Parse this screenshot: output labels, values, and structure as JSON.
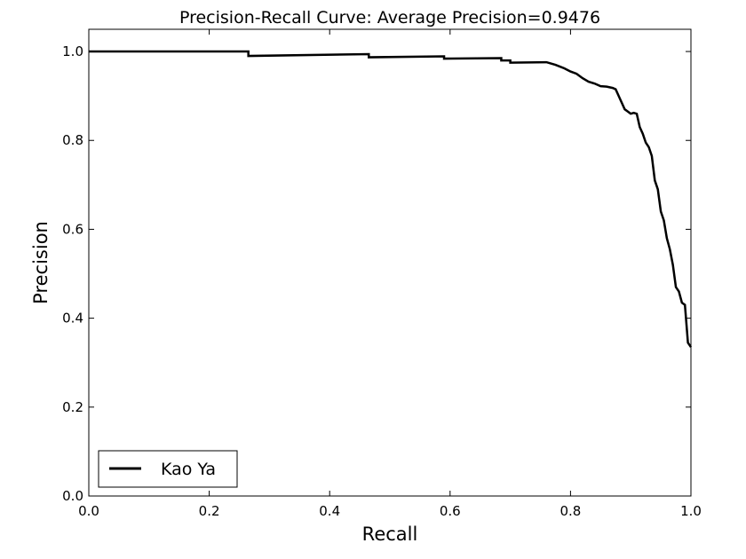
{
  "chart_data": {
    "type": "line",
    "title": "Precision-Recall Curve: Average Precision=0.9476",
    "xlabel": "Recall",
    "ylabel": "Precision",
    "xlim": [
      0.0,
      1.0
    ],
    "ylim": [
      0.0,
      1.05
    ],
    "xticks": [
      "0.0",
      "0.2",
      "0.4",
      "0.6",
      "0.8",
      "1.0"
    ],
    "yticks": [
      "0.0",
      "0.2",
      "0.4",
      "0.6",
      "0.8",
      "1.0"
    ],
    "grid": false,
    "legend_position": "lower-left",
    "series": [
      {
        "name": "Kao Ya",
        "color": "#000000",
        "x": [
          0.0,
          0.265,
          0.265,
          0.465,
          0.465,
          0.59,
          0.59,
          0.685,
          0.685,
          0.7,
          0.7,
          0.76,
          0.775,
          0.79,
          0.8,
          0.81,
          0.82,
          0.83,
          0.84,
          0.85,
          0.86,
          0.87,
          0.875,
          0.88,
          0.885,
          0.89,
          0.895,
          0.9,
          0.905,
          0.91,
          0.915,
          0.92,
          0.925,
          0.93,
          0.935,
          0.94,
          0.945,
          0.95,
          0.955,
          0.96,
          0.965,
          0.97,
          0.975,
          0.98,
          0.985,
          0.99,
          0.995,
          1.0
        ],
        "y": [
          1.0,
          1.0,
          0.99,
          0.994,
          0.987,
          0.989,
          0.984,
          0.985,
          0.98,
          0.98,
          0.975,
          0.976,
          0.97,
          0.962,
          0.955,
          0.95,
          0.94,
          0.932,
          0.928,
          0.922,
          0.921,
          0.918,
          0.915,
          0.9,
          0.885,
          0.87,
          0.865,
          0.86,
          0.862,
          0.86,
          0.83,
          0.815,
          0.795,
          0.785,
          0.765,
          0.71,
          0.69,
          0.64,
          0.62,
          0.58,
          0.555,
          0.52,
          0.47,
          0.46,
          0.435,
          0.43,
          0.345,
          0.335
        ]
      }
    ]
  }
}
